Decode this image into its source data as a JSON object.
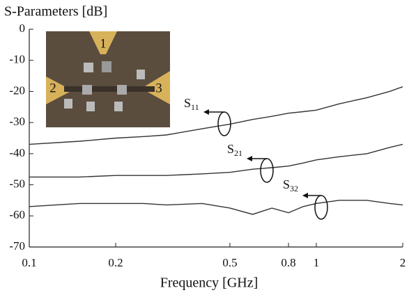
{
  "chart_data": {
    "type": "line",
    "title": "S-Parameters [dB]",
    "x_label": "Frequency [GHz]",
    "log_x": true,
    "x": [
      0.1,
      0.15,
      0.2,
      0.25,
      0.3,
      0.4,
      0.5,
      0.6,
      0.7,
      0.8,
      0.9,
      1,
      1.2,
      1.5,
      1.8,
      2
    ],
    "series": [
      {
        "label": "S",
        "sub": "11",
        "color": "#333333",
        "values": [
          -37,
          -36,
          -35,
          -34.5,
          -34,
          -32,
          -30.5,
          -29,
          -28,
          -27,
          -26.5,
          -26,
          -24,
          -22,
          -20,
          -18.5
        ]
      },
      {
        "label": "S",
        "sub": "21",
        "color": "#333333",
        "values": [
          -47.5,
          -47.5,
          -47,
          -47,
          -47,
          -46.5,
          -46,
          -45,
          -44.5,
          -44,
          -43,
          -42,
          -41,
          -40,
          -38,
          -37
        ]
      },
      {
        "label": "S",
        "sub": "32",
        "color": "#333333",
        "values": [
          -57,
          -56,
          -56,
          -56,
          -56.5,
          -56,
          -57.5,
          -59.5,
          -57.5,
          -59,
          -57,
          -56,
          -55,
          -55,
          -56,
          -56.5
        ]
      }
    ],
    "xlim": [
      0.1,
      2
    ],
    "xticks": [
      0.1,
      0.2,
      0.5,
      0.8,
      1,
      2
    ],
    "ylim": [
      -70,
      0
    ],
    "yticks": [
      0,
      -10,
      -20,
      -30,
      -40,
      -50,
      -60,
      -70
    ],
    "inset": {
      "port_labels": [
        "1",
        "2",
        "3"
      ]
    }
  }
}
